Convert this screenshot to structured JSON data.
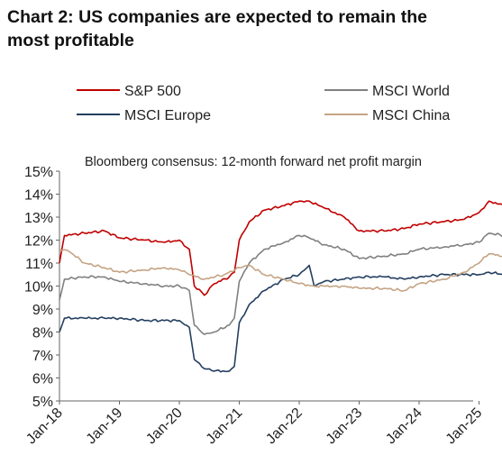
{
  "title_lines": [
    "Chart 2: US companies are expected to remain the",
    "most profitable"
  ],
  "chart_data": {
    "type": "line",
    "subtitle": "Bloomberg consensus: 12-month forward net profit margin",
    "x_ticks": [
      "Jan-18",
      "Jan-19",
      "Jan-20",
      "Jan-21",
      "Jan-22",
      "Jan-23",
      "Jan-24",
      "Jan-25"
    ],
    "y_ticks": [
      "5%",
      "6%",
      "7%",
      "8%",
      "9%",
      "10%",
      "11%",
      "12%",
      "13%",
      "14%",
      "15%"
    ],
    "ylim": [
      5,
      15
    ],
    "xlim": [
      "2018-01",
      "2025-10"
    ],
    "grid": false,
    "legend_position": "top",
    "series": [
      {
        "name": "S&P 500",
        "color": "#c00000",
        "points": [
          [
            "2018-01",
            11.0
          ],
          [
            "2018-02",
            12.2
          ],
          [
            "2018-06",
            12.3
          ],
          [
            "2018-10",
            12.4
          ],
          [
            "2019-01",
            12.1
          ],
          [
            "2019-06",
            12.0
          ],
          [
            "2019-10",
            11.9
          ],
          [
            "2020-01",
            12.0
          ],
          [
            "2020-03",
            11.6
          ],
          [
            "2020-04",
            10.0
          ],
          [
            "2020-06",
            9.6
          ],
          [
            "2020-08",
            10.1
          ],
          [
            "2020-11",
            10.4
          ],
          [
            "2020-12",
            10.6
          ],
          [
            "2021-01",
            12.0
          ],
          [
            "2021-03",
            12.8
          ],
          [
            "2021-06",
            13.3
          ],
          [
            "2021-10",
            13.5
          ],
          [
            "2022-01",
            13.7
          ],
          [
            "2022-03",
            13.7
          ],
          [
            "2022-06",
            13.4
          ],
          [
            "2022-10",
            13.0
          ],
          [
            "2023-01",
            12.4
          ],
          [
            "2023-06",
            12.4
          ],
          [
            "2023-10",
            12.5
          ],
          [
            "2024-01",
            12.7
          ],
          [
            "2024-06",
            12.8
          ],
          [
            "2024-10",
            12.9
          ],
          [
            "2025-01",
            13.2
          ],
          [
            "2025-03",
            13.7
          ],
          [
            "2025-06",
            13.5
          ],
          [
            "2025-09",
            13.5
          ]
        ]
      },
      {
        "name": "MSCI World",
        "color": "#808080",
        "points": [
          [
            "2018-01",
            9.4
          ],
          [
            "2018-02",
            10.3
          ],
          [
            "2018-06",
            10.4
          ],
          [
            "2018-10",
            10.4
          ],
          [
            "2019-01",
            10.2
          ],
          [
            "2019-06",
            10.1
          ],
          [
            "2019-10",
            10.0
          ],
          [
            "2020-01",
            10.0
          ],
          [
            "2020-03",
            9.8
          ],
          [
            "2020-04",
            8.3
          ],
          [
            "2020-06",
            7.9
          ],
          [
            "2020-08",
            8.0
          ],
          [
            "2020-11",
            8.3
          ],
          [
            "2020-12",
            8.6
          ],
          [
            "2021-01",
            10.2
          ],
          [
            "2021-03",
            11.0
          ],
          [
            "2021-06",
            11.6
          ],
          [
            "2021-10",
            11.9
          ],
          [
            "2022-01",
            12.2
          ],
          [
            "2022-03",
            12.1
          ],
          [
            "2022-06",
            11.8
          ],
          [
            "2022-10",
            11.6
          ],
          [
            "2023-01",
            11.2
          ],
          [
            "2023-06",
            11.3
          ],
          [
            "2023-10",
            11.4
          ],
          [
            "2024-01",
            11.6
          ],
          [
            "2024-06",
            11.7
          ],
          [
            "2024-10",
            11.8
          ],
          [
            "2025-01",
            11.9
          ],
          [
            "2025-03",
            12.3
          ],
          [
            "2025-06",
            12.2
          ],
          [
            "2025-09",
            12.2
          ]
        ]
      },
      {
        "name": "MSCI Europe",
        "color": "#243f60",
        "points": [
          [
            "2018-01",
            8.0
          ],
          [
            "2018-02",
            8.6
          ],
          [
            "2018-06",
            8.6
          ],
          [
            "2018-10",
            8.6
          ],
          [
            "2019-01",
            8.6
          ],
          [
            "2019-06",
            8.5
          ],
          [
            "2019-10",
            8.5
          ],
          [
            "2020-01",
            8.5
          ],
          [
            "2020-03",
            8.2
          ],
          [
            "2020-04",
            6.8
          ],
          [
            "2020-06",
            6.4
          ],
          [
            "2020-08",
            6.3
          ],
          [
            "2020-11",
            6.3
          ],
          [
            "2020-12",
            6.5
          ],
          [
            "2021-01",
            8.4
          ],
          [
            "2021-03",
            9.2
          ],
          [
            "2021-06",
            9.8
          ],
          [
            "2021-10",
            10.3
          ],
          [
            "2022-01",
            10.5
          ],
          [
            "2022-03",
            10.9
          ],
          [
            "2022-04",
            10.0
          ],
          [
            "2022-06",
            10.2
          ],
          [
            "2022-10",
            10.3
          ],
          [
            "2023-01",
            10.4
          ],
          [
            "2023-06",
            10.4
          ],
          [
            "2023-10",
            10.3
          ],
          [
            "2024-01",
            10.4
          ],
          [
            "2024-06",
            10.5
          ],
          [
            "2024-10",
            10.5
          ],
          [
            "2025-01",
            10.5
          ],
          [
            "2025-03",
            10.6
          ],
          [
            "2025-06",
            10.5
          ],
          [
            "2025-09",
            10.5
          ]
        ]
      },
      {
        "name": "MSCI China",
        "color": "#c4a484",
        "points": [
          [
            "2018-01",
            11.6
          ],
          [
            "2018-03",
            11.5
          ],
          [
            "2018-06",
            11.0
          ],
          [
            "2018-10",
            10.8
          ],
          [
            "2019-01",
            10.6
          ],
          [
            "2019-06",
            10.7
          ],
          [
            "2019-10",
            10.8
          ],
          [
            "2020-01",
            10.7
          ],
          [
            "2020-03",
            10.5
          ],
          [
            "2020-06",
            10.3
          ],
          [
            "2020-10",
            10.5
          ],
          [
            "2021-01",
            10.8
          ],
          [
            "2021-03",
            10.9
          ],
          [
            "2021-06",
            10.5
          ],
          [
            "2021-10",
            10.3
          ],
          [
            "2022-01",
            10.1
          ],
          [
            "2022-04",
            10.0
          ],
          [
            "2022-08",
            10.0
          ],
          [
            "2022-10",
            10.0
          ],
          [
            "2023-01",
            9.9
          ],
          [
            "2023-06",
            9.9
          ],
          [
            "2023-10",
            9.8
          ],
          [
            "2024-01",
            10.1
          ],
          [
            "2024-06",
            10.3
          ],
          [
            "2024-10",
            10.6
          ],
          [
            "2025-01",
            11.0
          ],
          [
            "2025-03",
            11.4
          ],
          [
            "2025-06",
            11.3
          ],
          [
            "2025-09",
            11.0
          ]
        ]
      }
    ]
  }
}
